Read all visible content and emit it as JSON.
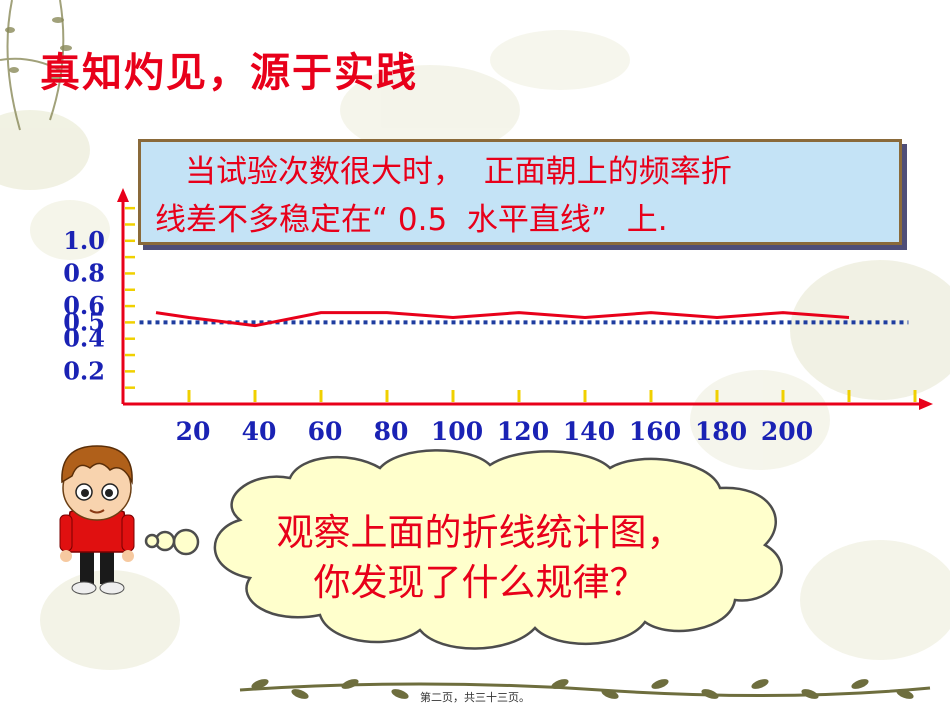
{
  "slide": {
    "title": "真知灼见，源于实践",
    "note_lines": [
      "当试验次数很大时，  正面朝上的频率折",
      "线差不多稳定在“ 0.5  水平直线”  上."
    ],
    "question_lines": [
      "观察上面的折线统计图，",
      "你发现了什么规律？"
    ],
    "page_number": "第二页，共三十三页。"
  },
  "colors": {
    "title": "#e8001a",
    "line": "#e8001a",
    "reference_line": "#1f3ea0",
    "axis": "#e8001a",
    "tick_label": "#1a22b4",
    "tick_mark": "#f0d000",
    "note_bg": "#c4e3f6",
    "bubble_bg": "#ffffcc"
  },
  "icons": [
    "boy-character-icon",
    "thought-bubble-icon"
  ],
  "chart_data": {
    "type": "line",
    "title": "",
    "xlabel": "",
    "ylabel": "",
    "x_tick_labels": [
      "20",
      "40",
      "60",
      "80",
      "100",
      "120",
      "140",
      "160",
      "180",
      "200"
    ],
    "x_tick_values": [
      20,
      40,
      60,
      80,
      100,
      120,
      140,
      160,
      180,
      200
    ],
    "y_tick_labels": [
      "0.2",
      "0.4",
      "0.5",
      "0.6",
      "0.8",
      "1.0"
    ],
    "y_tick_values": [
      0.2,
      0.4,
      0.5,
      0.6,
      0.8,
      1.0
    ],
    "xlim": [
      0,
      240
    ],
    "ylim": [
      0,
      1.25
    ],
    "series": [
      {
        "x": [
          10,
          20,
          40,
          60,
          80,
          100,
          120,
          140,
          160,
          180,
          200,
          220
        ],
        "values": [
          0.56,
          0.53,
          0.48,
          0.56,
          0.56,
          0.53,
          0.56,
          0.53,
          0.56,
          0.53,
          0.56,
          0.53
        ]
      }
    ],
    "reference_line": {
      "y": 0.5,
      "x_range": [
        5,
        238
      ],
      "style": "dotted"
    },
    "grid": false
  }
}
